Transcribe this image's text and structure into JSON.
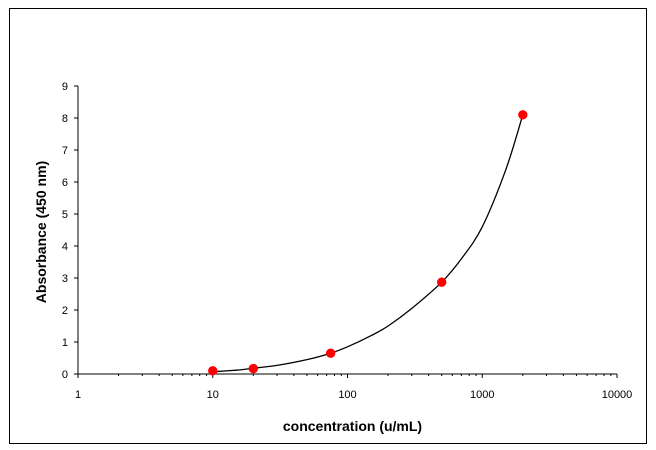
{
  "chart_data": {
    "type": "scatter",
    "title": "",
    "xlabel": "concentration (u/mL)",
    "ylabel": "Absorbance (450 nm)",
    "xscale": "log",
    "xlim": [
      1,
      10000
    ],
    "ylim": [
      0,
      9
    ],
    "x_ticks": [
      "1",
      "10",
      "100",
      "1000",
      "10000"
    ],
    "y_ticks": [
      "0",
      "1",
      "2",
      "3",
      "4",
      "5",
      "6",
      "7",
      "8",
      "9"
    ],
    "grid": false,
    "legend": "none",
    "series": [
      {
        "type": "scatter",
        "color": "#ff0000",
        "x": [
          10,
          20,
          75,
          500,
          2000
        ],
        "y": [
          0.1,
          0.17,
          0.65,
          2.87,
          8.1
        ]
      },
      {
        "type": "line",
        "fit": true,
        "color": "#000000",
        "x": [
          10,
          15,
          20,
          30,
          50,
          75,
          100,
          150,
          200,
          300,
          500,
          700,
          1000,
          1500,
          2000
        ],
        "y": [
          0.07,
          0.12,
          0.18,
          0.27,
          0.45,
          0.65,
          0.85,
          1.2,
          1.5,
          2.05,
          2.87,
          3.6,
          4.6,
          6.4,
          8.1
        ]
      }
    ]
  }
}
